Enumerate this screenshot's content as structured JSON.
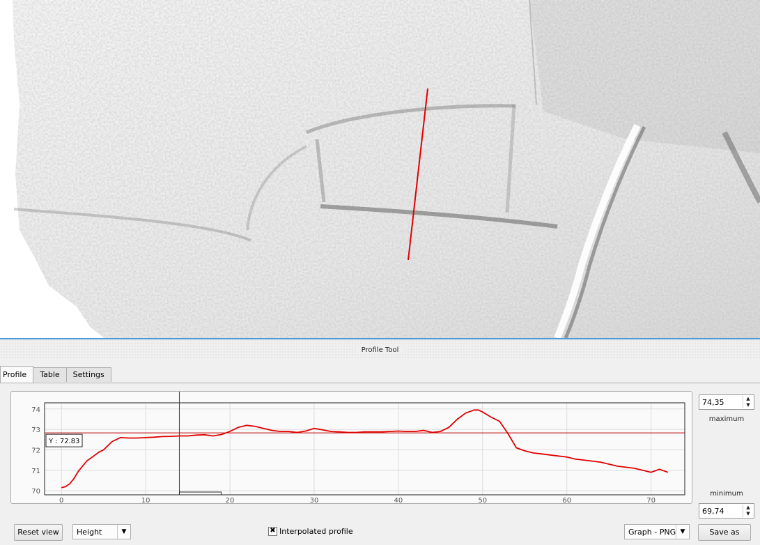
{
  "dock": {
    "title": "Profile Tool"
  },
  "tabs": [
    {
      "label": "Profile",
      "active": true
    },
    {
      "label": "Table",
      "active": false
    },
    {
      "label": "Settings",
      "active": false
    }
  ],
  "controls": {
    "maximum_value": "74,35",
    "maximum_label": "maximum",
    "minimum_value": "69,74",
    "minimum_label": "minimum",
    "reset_view_label": "Reset view",
    "plot_mode": "Height",
    "interpolated_label": "Interpolated profile",
    "interpolated_checked": true,
    "checkbox_mark": "✖",
    "export_format": "Graph - PNG",
    "save_as_label": "Save as"
  },
  "cursor_readout": "Y : 72.83",
  "colors": {
    "profile_line": "#e00000",
    "accent": "#4a9ad8"
  },
  "chart_data": {
    "type": "line",
    "xlim": [
      -2,
      74
    ],
    "ylim": [
      69.8,
      74.3
    ],
    "x_ticks": [
      0,
      10,
      20,
      30,
      40,
      50,
      60,
      70
    ],
    "y_ticks": [
      70,
      71,
      72,
      73,
      74
    ],
    "grid": true,
    "cursor": {
      "x": 14,
      "y": 72.83
    },
    "series": [
      {
        "x": [
          0,
          0.5,
          1,
          1.5,
          2,
          2.5,
          3,
          3.5,
          4,
          4.5,
          5,
          5.5,
          6,
          7,
          8,
          9,
          10,
          11,
          12,
          13,
          14,
          15,
          16,
          17,
          18,
          19,
          20,
          21,
          22,
          23,
          24,
          25,
          26,
          27,
          28,
          29,
          30,
          31,
          32,
          33,
          34,
          35,
          36,
          37,
          38,
          39,
          40,
          41,
          42,
          43,
          44,
          45,
          46,
          47,
          48,
          49,
          49.5,
          50,
          51,
          52,
          53,
          54,
          55,
          56,
          57,
          58,
          59,
          60,
          61,
          62,
          63,
          64,
          65,
          66,
          67,
          68,
          69,
          70,
          71,
          72
        ],
        "y": [
          70.15,
          70.2,
          70.35,
          70.6,
          70.95,
          71.2,
          71.45,
          71.6,
          71.75,
          71.9,
          72.0,
          72.2,
          72.4,
          72.6,
          72.58,
          72.58,
          72.6,
          72.62,
          72.65,
          72.66,
          72.68,
          72.68,
          72.72,
          72.74,
          72.68,
          72.75,
          72.9,
          73.1,
          73.2,
          73.15,
          73.05,
          72.95,
          72.9,
          72.9,
          72.85,
          72.92,
          73.05,
          72.98,
          72.9,
          72.88,
          72.85,
          72.85,
          72.88,
          72.88,
          72.88,
          72.9,
          72.92,
          72.9,
          72.9,
          72.95,
          72.85,
          72.9,
          73.1,
          73.5,
          73.8,
          73.95,
          73.95,
          73.85,
          73.6,
          73.4,
          72.8,
          72.1,
          71.95,
          71.85,
          71.8,
          71.75,
          71.7,
          71.65,
          71.55,
          71.5,
          71.45,
          71.4,
          71.3,
          71.2,
          71.15,
          71.1,
          71.0,
          70.9,
          71.05,
          70.9
        ]
      }
    ]
  }
}
